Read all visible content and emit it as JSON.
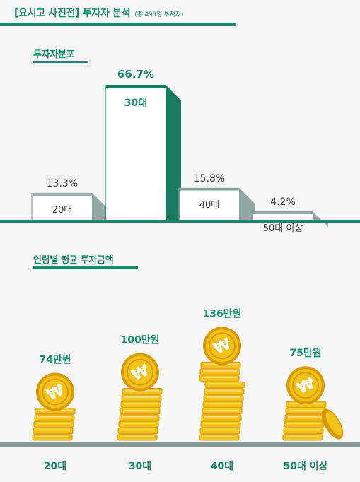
{
  "header": {
    "title": "[요시고 사진전] 투자자 분석",
    "subtitle": "(총 495명 투자자)"
  },
  "colors": {
    "accent": "#1a8a6c",
    "gray_side": "#8fa9a2",
    "dark_green_side": "#187a5f",
    "coin": "#f2c218",
    "coin_dark": "#d99a0a",
    "baseline": "#8a9a96"
  },
  "chart_data": [
    {
      "type": "bar",
      "title": "투자자분포",
      "categories": [
        "20대",
        "30대",
        "40대",
        "50대 이상"
      ],
      "values": [
        13.3,
        66.7,
        15.8,
        4.2
      ],
      "value_labels": [
        "13.3%",
        "66.7%",
        "15.8%",
        "4.2%"
      ],
      "unit": "%",
      "highlight": "30대"
    },
    {
      "type": "bar",
      "title": "연령별 평균 투자금액",
      "categories": [
        "20대",
        "30대",
        "40대",
        "50대 이상"
      ],
      "values": [
        74,
        100,
        136,
        75
      ],
      "value_labels": [
        "74만원",
        "100만원",
        "136만원",
        "75만원"
      ],
      "unit": "만원",
      "icon": "coin-stack-icon"
    }
  ]
}
